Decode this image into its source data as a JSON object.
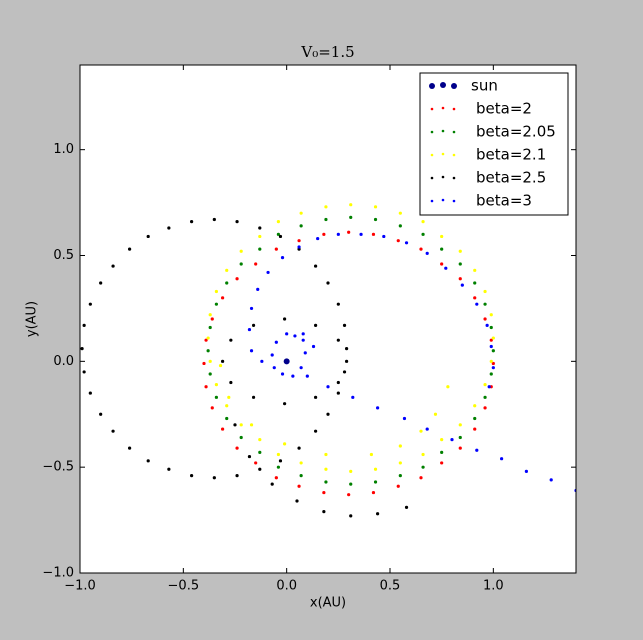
{
  "chart_data": {
    "type": "scatter",
    "title": "V₀=1.5",
    "x_label": "x(AU)",
    "y_label": "y(AU)",
    "xlim": [
      -1.0,
      1.4
    ],
    "ylim": [
      -1.0,
      1.4
    ],
    "xticks": [
      {
        "value": -1.0,
        "label": "−1.0"
      },
      {
        "value": -0.5,
        "label": "−0.5"
      },
      {
        "value": 0,
        "label": "0.0"
      },
      {
        "value": 0.5,
        "label": "0.5"
      },
      {
        "value": 1.0,
        "label": "1.0"
      }
    ],
    "yticks": [
      {
        "value": -1.0,
        "label": "−1.0"
      },
      {
        "value": -0.5,
        "label": "−0.5"
      },
      {
        "value": 0,
        "label": "0.0"
      },
      {
        "value": 0.5,
        "label": "0.5"
      },
      {
        "value": 1.0,
        "label": "1.0"
      }
    ],
    "legend": "upper right",
    "grid": false,
    "series": [
      {
        "name": "sun",
        "color": "#00008b",
        "x": [
          0
        ],
        "y": [
          0
        ]
      },
      {
        "name": "beta=2",
        "color": "#ff0000",
        "x": [
          1.0,
          0.99,
          0.96,
          0.91,
          0.84,
          0.75,
          0.65,
          0.54,
          0.42,
          0.3,
          0.18,
          0.06,
          -0.05,
          -0.15,
          -0.24,
          -0.31,
          -0.36,
          -0.39,
          -0.4,
          -0.39,
          -0.36,
          -0.31,
          -0.24,
          -0.15,
          -0.05,
          0.06,
          0.18,
          0.3,
          0.42,
          0.54,
          0.65,
          0.75,
          0.84,
          0.91,
          0.96,
          0.99
        ],
        "y": [
          -0.01,
          0.1,
          0.2,
          0.3,
          0.39,
          0.46,
          0.53,
          0.57,
          0.6,
          0.61,
          0.6,
          0.57,
          0.53,
          0.46,
          0.39,
          0.3,
          0.2,
          0.1,
          -0.01,
          -0.12,
          -0.22,
          -0.32,
          -0.41,
          -0.48,
          -0.55,
          -0.59,
          -0.62,
          -0.63,
          -0.62,
          -0.59,
          -0.55,
          -0.48,
          -0.41,
          -0.32,
          -0.22,
          -0.12
        ]
      },
      {
        "name": "beta=2.05",
        "color": "#008000",
        "x": [
          1.0,
          0.99,
          0.96,
          0.91,
          0.84,
          0.75,
          0.66,
          0.55,
          0.43,
          0.31,
          0.19,
          0.07,
          -0.04,
          -0.13,
          -0.22,
          -0.29,
          -0.34,
          -0.37,
          -0.38,
          -0.37,
          -0.34,
          -0.29,
          -0.22,
          -0.13,
          -0.04,
          0.07,
          0.19,
          0.31,
          0.43,
          0.55,
          0.66,
          0.75,
          0.84,
          0.91,
          0.96,
          0.99
        ],
        "y": [
          0.05,
          0.16,
          0.27,
          0.37,
          0.46,
          0.53,
          0.6,
          0.64,
          0.67,
          0.68,
          0.67,
          0.64,
          0.6,
          0.53,
          0.46,
          0.37,
          0.27,
          0.16,
          0.05,
          -0.06,
          -0.17,
          -0.27,
          -0.36,
          -0.43,
          -0.5,
          -0.54,
          -0.57,
          -0.58,
          -0.57,
          -0.54,
          -0.5,
          -0.43,
          -0.36,
          -0.27,
          -0.17,
          -0.06
        ]
      },
      {
        "name": "beta=2.1",
        "color": "#ffff00",
        "x": [
          1.0,
          0.99,
          0.96,
          0.91,
          0.84,
          0.75,
          0.66,
          0.55,
          0.43,
          0.31,
          0.19,
          0.07,
          -0.04,
          -0.13,
          -0.22,
          -0.29,
          -0.34,
          -0.37,
          -0.38,
          -0.37,
          -0.34,
          -0.29,
          -0.22,
          -0.13,
          -0.04,
          0.07,
          0.19,
          0.31,
          0.43,
          0.55,
          0.66,
          0.75,
          0.84,
          0.91,
          0.96,
          0.99,
          -0.32,
          -0.28,
          -0.17,
          -0.01,
          0.19,
          0.41,
          0.55,
          0.65,
          0.72,
          0.78
        ],
        "y": [
          0.11,
          0.22,
          0.33,
          0.43,
          0.52,
          0.59,
          0.66,
          0.7,
          0.73,
          0.74,
          0.73,
          0.7,
          0.66,
          0.59,
          0.52,
          0.43,
          0.33,
          0.22,
          0.11,
          0.0,
          -0.11,
          -0.21,
          -0.3,
          -0.37,
          -0.44,
          -0.48,
          -0.51,
          -0.52,
          -0.51,
          -0.48,
          -0.44,
          -0.37,
          -0.3,
          -0.21,
          -0.11,
          0.0,
          -0.02,
          -0.17,
          -0.3,
          -0.39,
          -0.44,
          -0.44,
          -0.4,
          -0.33,
          -0.25,
          -0.12
        ]
      },
      {
        "name": "beta=2.5",
        "color": "#000000",
        "x": [
          0.29,
          0.25,
          0.14,
          -0.01,
          -0.16,
          -0.27,
          -0.31,
          -0.27,
          -0.16,
          -0.01,
          0.14,
          0.25,
          0.29,
          0.28,
          0.25,
          0.2,
          0.14,
          0.06,
          -0.03,
          -0.13,
          -0.24,
          -0.35,
          -0.46,
          -0.57,
          -0.67,
          -0.76,
          -0.84,
          -0.9,
          -0.95,
          -0.98,
          -0.99,
          -0.98,
          -0.95,
          -0.9,
          -0.84,
          -0.76,
          -0.67,
          -0.57,
          -0.46,
          -0.35,
          -0.24,
          -0.13,
          -0.03,
          0.06,
          0.14,
          0.2,
          0.25,
          0.28,
          -0.25,
          -0.18,
          -0.07,
          0.05,
          0.18,
          0.31,
          0.44,
          0.58
        ],
        "y": [
          0,
          0.1,
          0.17,
          0.2,
          0.17,
          0.1,
          0,
          -0.1,
          -0.17,
          -0.2,
          -0.17,
          -0.1,
          0.06,
          0.17,
          0.27,
          0.37,
          0.45,
          0.53,
          0.59,
          0.63,
          0.66,
          0.67,
          0.66,
          0.63,
          0.59,
          0.53,
          0.45,
          0.37,
          0.27,
          0.17,
          0.06,
          -0.05,
          -0.15,
          -0.25,
          -0.33,
          -0.41,
          -0.47,
          -0.51,
          -0.54,
          -0.55,
          -0.54,
          -0.51,
          -0.47,
          -0.41,
          -0.33,
          -0.25,
          -0.15,
          -0.05,
          -0.3,
          -0.45,
          -0.58,
          -0.66,
          -0.71,
          -0.73,
          -0.72,
          -0.69
        ]
      },
      {
        "name": "beta=3",
        "color": "#0000ff",
        "x": [
          0.04,
          0.08,
          0.09,
          0.07,
          0.03,
          -0.02,
          -0.06,
          -0.07,
          -0.05,
          0.0,
          0.08,
          0.13,
          0.1,
          -0.12,
          -0.17,
          -0.18,
          -0.17,
          -0.14,
          -0.09,
          -0.02,
          0.06,
          0.15,
          0.25,
          0.36,
          0.47,
          0.58,
          0.68,
          0.77,
          0.85,
          0.92,
          0.97,
          0.99,
          1.0,
          0.98,
          0.2,
          0.32,
          0.44,
          0.57,
          0.68,
          0.8,
          0.92,
          1.04,
          1.16,
          1.28,
          1.4
        ],
        "y": [
          0.12,
          0.1,
          0.04,
          -0.03,
          -0.07,
          -0.06,
          -0.03,
          0.03,
          0.09,
          0.13,
          0.13,
          0.07,
          -0.07,
          0.0,
          0.05,
          0.15,
          0.25,
          0.34,
          0.42,
          0.49,
          0.54,
          0.58,
          0.6,
          0.6,
          0.59,
          0.56,
          0.51,
          0.44,
          0.36,
          0.27,
          0.17,
          0.07,
          -0.03,
          -0.12,
          -0.12,
          -0.17,
          -0.22,
          -0.27,
          -0.32,
          -0.37,
          -0.42,
          -0.46,
          -0.52,
          -0.56,
          -0.61
        ]
      }
    ]
  }
}
